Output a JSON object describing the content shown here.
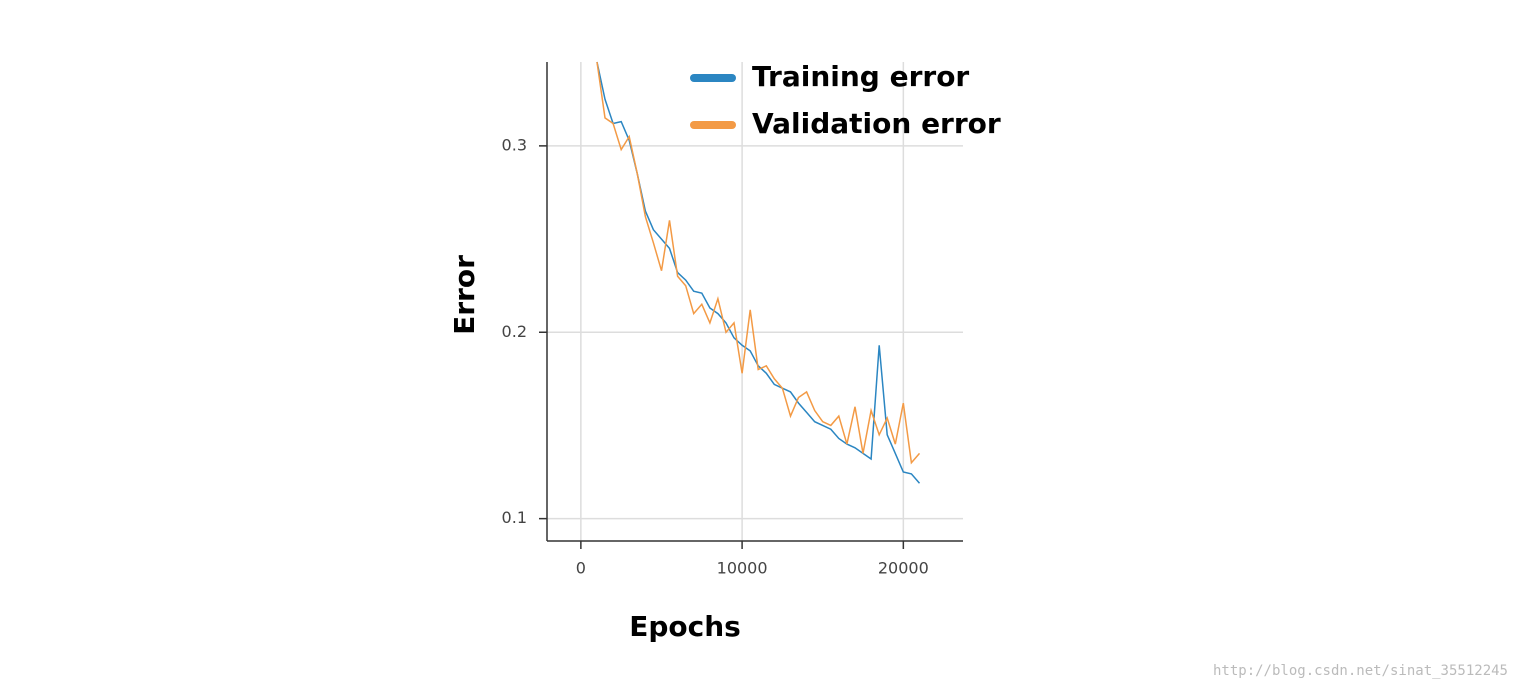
{
  "chart_data": {
    "type": "line",
    "x_label": "Epochs",
    "y_label": "Error",
    "x": [
      1000,
      1500,
      2000,
      2500,
      3000,
      3500,
      4000,
      4500,
      5000,
      5500,
      6000,
      6500,
      7000,
      7500,
      8000,
      8500,
      9000,
      9500,
      10000,
      10500,
      11000,
      11500,
      12000,
      12500,
      13000,
      13500,
      14000,
      14500,
      15000,
      15500,
      16000,
      16500,
      17000,
      17500,
      18000,
      18500,
      19000,
      19500,
      20000,
      20500,
      21000
    ],
    "series": [
      {
        "name": "Training error",
        "color": "#2b86c2",
        "values": [
          0.345,
          0.325,
          0.312,
          0.313,
          0.303,
          0.285,
          0.265,
          0.255,
          0.25,
          0.245,
          0.232,
          0.228,
          0.222,
          0.221,
          0.213,
          0.21,
          0.205,
          0.197,
          0.193,
          0.19,
          0.182,
          0.178,
          0.172,
          0.17,
          0.168,
          0.162,
          0.157,
          0.152,
          0.15,
          0.148,
          0.143,
          0.14,
          0.138,
          0.135,
          0.132,
          0.193,
          0.145,
          0.135,
          0.125,
          0.124,
          0.119
        ]
      },
      {
        "name": "Validation error",
        "color": "#f39a45",
        "values": [
          0.345,
          0.315,
          0.312,
          0.298,
          0.305,
          0.285,
          0.262,
          0.248,
          0.233,
          0.26,
          0.23,
          0.225,
          0.21,
          0.215,
          0.205,
          0.218,
          0.2,
          0.205,
          0.178,
          0.212,
          0.18,
          0.182,
          0.175,
          0.17,
          0.155,
          0.165,
          0.168,
          0.158,
          0.152,
          0.15,
          0.155,
          0.14,
          0.16,
          0.135,
          0.158,
          0.145,
          0.154,
          0.14,
          0.162,
          0.13,
          0.135
        ]
      }
    ],
    "xlim": [
      -2100,
      23700
    ],
    "ylim": [
      0.088,
      0.345
    ],
    "xticks": [
      0,
      10000,
      20000
    ],
    "yticks": [
      0.1,
      0.2,
      0.3
    ],
    "grid": true,
    "legend": "top-right"
  },
  "watermark": "http://blog.csdn.net/sinat_35512245"
}
